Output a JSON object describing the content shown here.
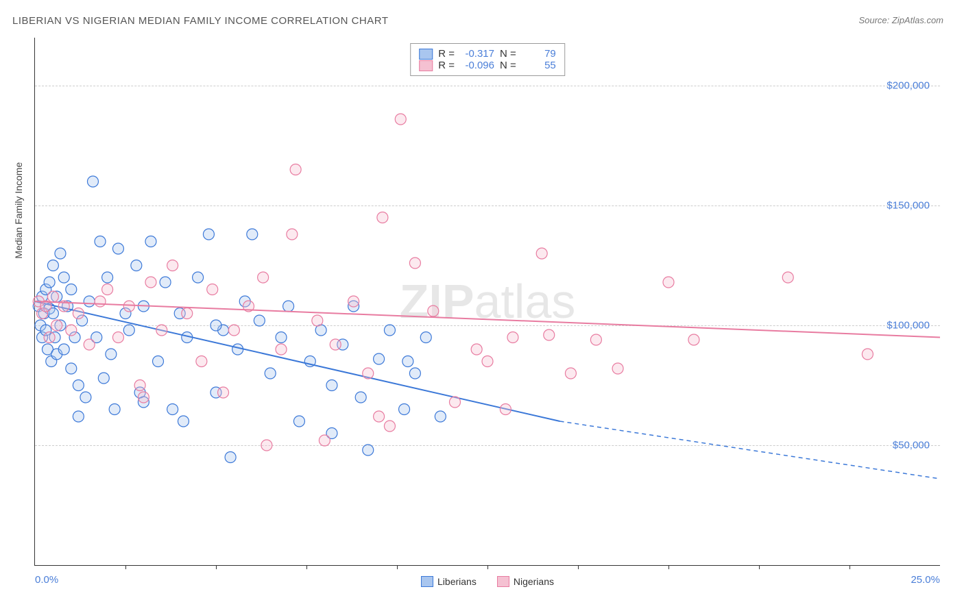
{
  "title": "LIBERIAN VS NIGERIAN MEDIAN FAMILY INCOME CORRELATION CHART",
  "source_label": "Source: ZipAtlas.com",
  "watermark": {
    "bold": "ZIP",
    "rest": "atlas"
  },
  "yaxis_title": "Median Family Income",
  "chart": {
    "type": "scatter",
    "xlim": [
      0,
      25
    ],
    "ylim": [
      0,
      220000
    ],
    "x_tick_step": 2.5,
    "x_min_label": "0.0%",
    "x_max_label": "25.0%",
    "y_ticks": [
      50000,
      100000,
      150000,
      200000
    ],
    "y_tick_labels": [
      "$50,000",
      "$100,000",
      "$150,000",
      "$200,000"
    ],
    "grid_color": "#cccccc",
    "axis_color": "#333333",
    "background_color": "#ffffff",
    "label_color": "#4a7ed8",
    "marker_radius": 8,
    "marker_stroke_width": 1.2,
    "marker_fill_opacity": 0.35,
    "series": [
      {
        "name": "Liberians",
        "color": "#3b78d8",
        "fill": "#a9c6ef",
        "R": "-0.317",
        "N": "79",
        "trend": {
          "x1": 0,
          "y1": 110000,
          "x2": 14.5,
          "y2": 60000,
          "extend_x": 25,
          "extend_y": 36000
        },
        "points": [
          [
            0.1,
            108000
          ],
          [
            0.15,
            100000
          ],
          [
            0.2,
            112000
          ],
          [
            0.2,
            95000
          ],
          [
            0.25,
            105000
          ],
          [
            0.3,
            115000
          ],
          [
            0.3,
            98000
          ],
          [
            0.35,
            90000
          ],
          [
            0.4,
            107000
          ],
          [
            0.4,
            118000
          ],
          [
            0.45,
            85000
          ],
          [
            0.5,
            105000
          ],
          [
            0.5,
            125000
          ],
          [
            0.55,
            95000
          ],
          [
            0.6,
            88000
          ],
          [
            0.6,
            112000
          ],
          [
            0.7,
            130000
          ],
          [
            0.7,
            100000
          ],
          [
            0.8,
            120000
          ],
          [
            0.8,
            90000
          ],
          [
            0.9,
            108000
          ],
          [
            1.0,
            82000
          ],
          [
            1.0,
            115000
          ],
          [
            1.1,
            95000
          ],
          [
            1.2,
            75000
          ],
          [
            1.3,
            102000
          ],
          [
            1.4,
            70000
          ],
          [
            1.5,
            110000
          ],
          [
            1.6,
            160000
          ],
          [
            1.7,
            95000
          ],
          [
            1.8,
            135000
          ],
          [
            1.9,
            78000
          ],
          [
            2.0,
            120000
          ],
          [
            2.1,
            88000
          ],
          [
            2.3,
            132000
          ],
          [
            2.5,
            105000
          ],
          [
            2.6,
            98000
          ],
          [
            2.8,
            125000
          ],
          [
            2.9,
            72000
          ],
          [
            3.0,
            108000
          ],
          [
            3.2,
            135000
          ],
          [
            3.4,
            85000
          ],
          [
            3.6,
            118000
          ],
          [
            3.8,
            65000
          ],
          [
            4.0,
            105000
          ],
          [
            4.2,
            95000
          ],
          [
            4.5,
            120000
          ],
          [
            4.8,
            138000
          ],
          [
            5.0,
            72000
          ],
          [
            5.2,
            98000
          ],
          [
            5.4,
            45000
          ],
          [
            5.6,
            90000
          ],
          [
            5.8,
            110000
          ],
          [
            6.0,
            138000
          ],
          [
            6.2,
            102000
          ],
          [
            6.5,
            80000
          ],
          [
            6.8,
            95000
          ],
          [
            7.0,
            108000
          ],
          [
            7.3,
            60000
          ],
          [
            7.6,
            85000
          ],
          [
            7.9,
            98000
          ],
          [
            8.2,
            75000
          ],
          [
            8.2,
            55000
          ],
          [
            8.5,
            92000
          ],
          [
            8.8,
            108000
          ],
          [
            9.0,
            70000
          ],
          [
            9.5,
            86000
          ],
          [
            9.8,
            98000
          ],
          [
            10.2,
            65000
          ],
          [
            10.3,
            85000
          ],
          [
            10.5,
            80000
          ],
          [
            10.8,
            95000
          ],
          [
            11.2,
            62000
          ],
          [
            9.2,
            48000
          ],
          [
            4.1,
            60000
          ],
          [
            2.2,
            65000
          ],
          [
            1.2,
            62000
          ],
          [
            3.0,
            68000
          ],
          [
            5.0,
            100000
          ]
        ]
      },
      {
        "name": "Nigerians",
        "color": "#e87ba0",
        "fill": "#f5c1d2",
        "R": "-0.096",
        "N": "55",
        "trend": {
          "x1": 0,
          "y1": 110000,
          "x2": 25,
          "y2": 95000
        },
        "points": [
          [
            0.1,
            110000
          ],
          [
            0.2,
            105000
          ],
          [
            0.3,
            108000
          ],
          [
            0.4,
            95000
          ],
          [
            0.5,
            112000
          ],
          [
            0.6,
            100000
          ],
          [
            0.8,
            108000
          ],
          [
            1.0,
            98000
          ],
          [
            1.2,
            105000
          ],
          [
            1.5,
            92000
          ],
          [
            1.8,
            110000
          ],
          [
            2.0,
            115000
          ],
          [
            2.3,
            95000
          ],
          [
            2.6,
            108000
          ],
          [
            2.9,
            75000
          ],
          [
            3.2,
            118000
          ],
          [
            3.5,
            98000
          ],
          [
            3.8,
            125000
          ],
          [
            4.2,
            105000
          ],
          [
            4.6,
            85000
          ],
          [
            4.9,
            115000
          ],
          [
            5.2,
            72000
          ],
          [
            5.5,
            98000
          ],
          [
            5.9,
            108000
          ],
          [
            6.3,
            120000
          ],
          [
            6.8,
            90000
          ],
          [
            7.1,
            138000
          ],
          [
            7.2,
            165000
          ],
          [
            7.8,
            102000
          ],
          [
            8.3,
            92000
          ],
          [
            8.8,
            110000
          ],
          [
            9.2,
            80000
          ],
          [
            9.6,
            145000
          ],
          [
            9.8,
            58000
          ],
          [
            9.5,
            62000
          ],
          [
            10.1,
            186000
          ],
          [
            10.5,
            126000
          ],
          [
            11.0,
            106000
          ],
          [
            11.6,
            68000
          ],
          [
            12.2,
            90000
          ],
          [
            12.5,
            85000
          ],
          [
            13.0,
            65000
          ],
          [
            13.2,
            95000
          ],
          [
            14.0,
            130000
          ],
          [
            14.8,
            80000
          ],
          [
            14.2,
            96000
          ],
          [
            15.5,
            94000
          ],
          [
            16.1,
            82000
          ],
          [
            17.5,
            118000
          ],
          [
            18.2,
            94000
          ],
          [
            20.8,
            120000
          ],
          [
            23.0,
            88000
          ],
          [
            6.4,
            50000
          ],
          [
            8.0,
            52000
          ],
          [
            3.0,
            70000
          ]
        ]
      }
    ]
  },
  "legend_top": {
    "r_label": "R =",
    "n_label": "N ="
  },
  "legend_bottom": {
    "items": [
      "Liberians",
      "Nigerians"
    ]
  }
}
